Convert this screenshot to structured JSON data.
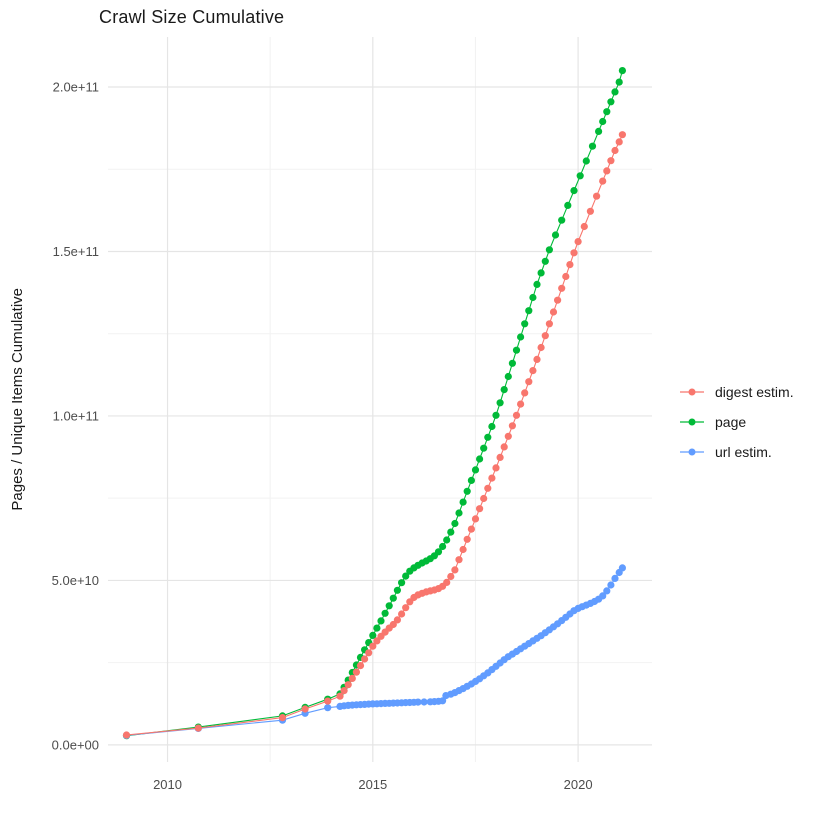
{
  "page": {
    "background": "#ffffff"
  },
  "chart_data": {
    "type": "scatter",
    "title": "Crawl Size Cumulative",
    "ylabel": "Pages / Unique Items Cumulative",
    "xlabel": "",
    "legend_position": "right-center",
    "grid": true,
    "axes": {
      "xlim": [
        2008.55,
        2021.8
      ],
      "ylim": [
        -5200000000.0,
        215200000000.0
      ],
      "x_ticks": [
        {
          "value": 2010,
          "label": "2010"
        },
        {
          "value": 2015,
          "label": "2015"
        },
        {
          "value": 2020,
          "label": "2020"
        }
      ],
      "x_minor": [
        2012.5,
        2017.5
      ],
      "y_ticks": [
        {
          "value": 0,
          "label": "0.0e+00"
        },
        {
          "value": 50000000000.0,
          "label": "5.0e+10"
        },
        {
          "value": 100000000000.0,
          "label": "1.0e+11"
        },
        {
          "value": 150000000000.0,
          "label": "1.5e+11"
        },
        {
          "value": 200000000000.0,
          "label": "2.0e+11"
        }
      ],
      "y_minor": [
        25000000000.0,
        75000000000.0,
        125000000000.0,
        175000000000.0
      ]
    },
    "style": {
      "grid_major_color": "#e5e5e5",
      "grid_minor_color": "#f2f2f2",
      "tick_label_color": "#4d4d4d",
      "title_color": "#1a1a1a",
      "point_radius": 3.6,
      "line_width": 1.1,
      "draw_order": [
        "page",
        "url estim.",
        "digest estim."
      ]
    },
    "series": [
      {
        "name": "digest estim.",
        "color": "#F8766D",
        "points": [
          [
            2009.0,
            3000000000.0
          ],
          [
            2010.75,
            5100000000.0
          ],
          [
            2012.8,
            8300000000.0
          ],
          [
            2013.35,
            10900000000.0
          ],
          [
            2013.9,
            13300000000.0
          ],
          [
            2014.2,
            14800000000.0
          ],
          [
            2014.3,
            16500000000.0
          ],
          [
            2014.4,
            18300000000.0
          ],
          [
            2014.5,
            20200000000.0
          ],
          [
            2014.6,
            22100000000.0
          ],
          [
            2014.7,
            24100000000.0
          ],
          [
            2014.8,
            26100000000.0
          ],
          [
            2014.9,
            28000000000.0
          ],
          [
            2015.0,
            30000000000.0
          ],
          [
            2015.1,
            31600000000.0
          ],
          [
            2015.2,
            33000000000.0
          ],
          [
            2015.3,
            34300000000.0
          ],
          [
            2015.4,
            35500000000.0
          ],
          [
            2015.5,
            36600000000.0
          ],
          [
            2015.6,
            38000000000.0
          ],
          [
            2015.7,
            39800000000.0
          ],
          [
            2015.8,
            41700000000.0
          ],
          [
            2015.9,
            43500000000.0
          ],
          [
            2016.0,
            44800000000.0
          ],
          [
            2016.1,
            45600000000.0
          ],
          [
            2016.2,
            46100000000.0
          ],
          [
            2016.3,
            46500000000.0
          ],
          [
            2016.4,
            46800000000.0
          ],
          [
            2016.5,
            47100000000.0
          ],
          [
            2016.6,
            47500000000.0
          ],
          [
            2016.7,
            48200000000.0
          ],
          [
            2016.8,
            49400000000.0
          ],
          [
            2016.9,
            51200000000.0
          ],
          [
            2017.0,
            53200000000.0
          ],
          [
            2017.1,
            56300000000.0
          ],
          [
            2017.2,
            59400000000.0
          ],
          [
            2017.3,
            62500000000.0
          ],
          [
            2017.4,
            65600000000.0
          ],
          [
            2017.5,
            68700000000.0
          ],
          [
            2017.6,
            71800000000.0
          ],
          [
            2017.7,
            74900000000.0
          ],
          [
            2017.8,
            78000000000.0
          ],
          [
            2017.9,
            81100000000.0
          ],
          [
            2018.0,
            84200000000.0
          ],
          [
            2018.1,
            87400000000.0
          ],
          [
            2018.2,
            90600000000.0
          ],
          [
            2018.3,
            93800000000.0
          ],
          [
            2018.4,
            97000000000.0
          ],
          [
            2018.5,
            100200000000.0
          ],
          [
            2018.6,
            103600000000.0
          ],
          [
            2018.7,
            107000000000.0
          ],
          [
            2018.8,
            110400000000.0
          ],
          [
            2018.9,
            113800000000.0
          ],
          [
            2019.0,
            117200000000.0
          ],
          [
            2019.1,
            120800000000.0
          ],
          [
            2019.2,
            124400000000.0
          ],
          [
            2019.3,
            128000000000.0
          ],
          [
            2019.4,
            131600000000.0
          ],
          [
            2019.5,
            135200000000.0
          ],
          [
            2019.6,
            138800000000.0
          ],
          [
            2019.7,
            142400000000.0
          ],
          [
            2019.8,
            146000000000.0
          ],
          [
            2019.9,
            149600000000.0
          ],
          [
            2020.0,
            153000000000.0
          ],
          [
            2020.15,
            157600000000.0
          ],
          [
            2020.3,
            162200000000.0
          ],
          [
            2020.45,
            166800000000.0
          ],
          [
            2020.6,
            171400000000.0
          ],
          [
            2020.7,
            174500000000.0
          ],
          [
            2020.8,
            177600000000.0
          ],
          [
            2020.9,
            180700000000.0
          ],
          [
            2021.0,
            183300000000.0
          ],
          [
            2021.08,
            185500000000.0
          ]
        ]
      },
      {
        "name": "page",
        "color": "#00BA38",
        "points": [
          [
            2009.0,
            2800000000.0
          ],
          [
            2010.75,
            5400000000.0
          ],
          [
            2012.8,
            8800000000.0
          ],
          [
            2013.35,
            11400000000.0
          ],
          [
            2013.9,
            13900000000.0
          ],
          [
            2014.2,
            15500000000.0
          ],
          [
            2014.3,
            17500000000.0
          ],
          [
            2014.4,
            19700000000.0
          ],
          [
            2014.5,
            22000000000.0
          ],
          [
            2014.6,
            24300000000.0
          ],
          [
            2014.7,
            26600000000.0
          ],
          [
            2014.8,
            28900000000.0
          ],
          [
            2014.9,
            31100000000.0
          ],
          [
            2015.0,
            33300000000.0
          ],
          [
            2015.1,
            35500000000.0
          ],
          [
            2015.2,
            37700000000.0
          ],
          [
            2015.3,
            40000000000.0
          ],
          [
            2015.4,
            42300000000.0
          ],
          [
            2015.5,
            44600000000.0
          ],
          [
            2015.6,
            47000000000.0
          ],
          [
            2015.7,
            49300000000.0
          ],
          [
            2015.8,
            51300000000.0
          ],
          [
            2015.9,
            52800000000.0
          ],
          [
            2016.0,
            53800000000.0
          ],
          [
            2016.1,
            54600000000.0
          ],
          [
            2016.2,
            55300000000.0
          ],
          [
            2016.3,
            55900000000.0
          ],
          [
            2016.4,
            56600000000.0
          ],
          [
            2016.5,
            57500000000.0
          ],
          [
            2016.6,
            58700000000.0
          ],
          [
            2016.7,
            60300000000.0
          ],
          [
            2016.8,
            62300000000.0
          ],
          [
            2016.9,
            64700000000.0
          ],
          [
            2017.0,
            67300000000.0
          ],
          [
            2017.1,
            70500000000.0
          ],
          [
            2017.2,
            73800000000.0
          ],
          [
            2017.3,
            77100000000.0
          ],
          [
            2017.4,
            80400000000.0
          ],
          [
            2017.5,
            83600000000.0
          ],
          [
            2017.6,
            86900000000.0
          ],
          [
            2017.7,
            90200000000.0
          ],
          [
            2017.8,
            93500000000.0
          ],
          [
            2017.9,
            96800000000.0
          ],
          [
            2018.0,
            100200000000.0
          ],
          [
            2018.1,
            104000000000.0
          ],
          [
            2018.2,
            108000000000.0
          ],
          [
            2018.3,
            112000000000.0
          ],
          [
            2018.4,
            116000000000.0
          ],
          [
            2018.5,
            120000000000.0
          ],
          [
            2018.6,
            124000000000.0
          ],
          [
            2018.7,
            128000000000.0
          ],
          [
            2018.8,
            132000000000.0
          ],
          [
            2018.9,
            136000000000.0
          ],
          [
            2019.0,
            140000000000.0
          ],
          [
            2019.1,
            143500000000.0
          ],
          [
            2019.2,
            147000000000.0
          ],
          [
            2019.3,
            150500000000.0
          ],
          [
            2019.45,
            155000000000.0
          ],
          [
            2019.6,
            159500000000.0
          ],
          [
            2019.75,
            164000000000.0
          ],
          [
            2019.9,
            168500000000.0
          ],
          [
            2020.05,
            173000000000.0
          ],
          [
            2020.2,
            177500000000.0
          ],
          [
            2020.35,
            182000000000.0
          ],
          [
            2020.5,
            186500000000.0
          ],
          [
            2020.6,
            189500000000.0
          ],
          [
            2020.7,
            192500000000.0
          ],
          [
            2020.8,
            195500000000.0
          ],
          [
            2020.9,
            198500000000.0
          ],
          [
            2021.0,
            201500000000.0
          ],
          [
            2021.08,
            205000000000.0
          ]
        ]
      },
      {
        "name": "url estim.",
        "color": "#619CFF",
        "points": [
          [
            2009.0,
            2900000000.0
          ],
          [
            2010.75,
            5000000000.0
          ],
          [
            2012.8,
            7500000000.0
          ],
          [
            2013.35,
            9600000000.0
          ],
          [
            2013.9,
            11300000000.0
          ],
          [
            2014.2,
            11700000000.0
          ],
          [
            2014.3,
            11900000000.0
          ],
          [
            2014.4,
            12000000000.0
          ],
          [
            2014.5,
            12100000000.0
          ],
          [
            2014.6,
            12200000000.0
          ],
          [
            2014.7,
            12250000000.0
          ],
          [
            2014.8,
            12300000000.0
          ],
          [
            2014.9,
            12400000000.0
          ],
          [
            2015.0,
            12450000000.0
          ],
          [
            2015.1,
            12500000000.0
          ],
          [
            2015.2,
            12550000000.0
          ],
          [
            2015.3,
            12600000000.0
          ],
          [
            2015.4,
            12650000000.0
          ],
          [
            2015.5,
            12700000000.0
          ],
          [
            2015.6,
            12750000000.0
          ],
          [
            2015.7,
            12800000000.0
          ],
          [
            2015.8,
            12850000000.0
          ],
          [
            2015.9,
            12900000000.0
          ],
          [
            2016.0,
            12950000000.0
          ],
          [
            2016.1,
            13000000000.0
          ],
          [
            2016.25,
            13050000000.0
          ],
          [
            2016.4,
            13100000000.0
          ],
          [
            2016.5,
            13150000000.0
          ],
          [
            2016.6,
            13250000000.0
          ],
          [
            2016.7,
            13400000000.0
          ],
          [
            2016.78,
            15000000000.0
          ],
          [
            2016.9,
            15400000000.0
          ],
          [
            2017.0,
            15900000000.0
          ],
          [
            2017.1,
            16500000000.0
          ],
          [
            2017.2,
            17100000000.0
          ],
          [
            2017.3,
            17800000000.0
          ],
          [
            2017.4,
            18500000000.0
          ],
          [
            2017.5,
            19300000000.0
          ],
          [
            2017.6,
            20100000000.0
          ],
          [
            2017.7,
            21000000000.0
          ],
          [
            2017.8,
            21900000000.0
          ],
          [
            2017.9,
            22900000000.0
          ],
          [
            2018.0,
            23900000000.0
          ],
          [
            2018.1,
            24900000000.0
          ],
          [
            2018.2,
            25900000000.0
          ],
          [
            2018.3,
            26800000000.0
          ],
          [
            2018.4,
            27600000000.0
          ],
          [
            2018.5,
            28400000000.0
          ],
          [
            2018.6,
            29200000000.0
          ],
          [
            2018.7,
            30000000000.0
          ],
          [
            2018.8,
            30800000000.0
          ],
          [
            2018.9,
            31600000000.0
          ],
          [
            2019.0,
            32400000000.0
          ],
          [
            2019.1,
            33200000000.0
          ],
          [
            2019.2,
            34100000000.0
          ],
          [
            2019.3,
            35000000000.0
          ],
          [
            2019.4,
            35900000000.0
          ],
          [
            2019.5,
            36800000000.0
          ],
          [
            2019.6,
            37800000000.0
          ],
          [
            2019.7,
            38800000000.0
          ],
          [
            2019.8,
            39800000000.0
          ],
          [
            2019.9,
            40800000000.0
          ],
          [
            2020.0,
            41500000000.0
          ],
          [
            2020.1,
            42000000000.0
          ],
          [
            2020.2,
            42500000000.0
          ],
          [
            2020.3,
            43000000000.0
          ],
          [
            2020.4,
            43600000000.0
          ],
          [
            2020.5,
            44300000000.0
          ],
          [
            2020.6,
            45300000000.0
          ],
          [
            2020.7,
            46800000000.0
          ],
          [
            2020.8,
            48600000000.0
          ],
          [
            2020.9,
            50600000000.0
          ],
          [
            2021.0,
            52400000000.0
          ],
          [
            2021.08,
            53800000000.0
          ]
        ]
      }
    ]
  }
}
